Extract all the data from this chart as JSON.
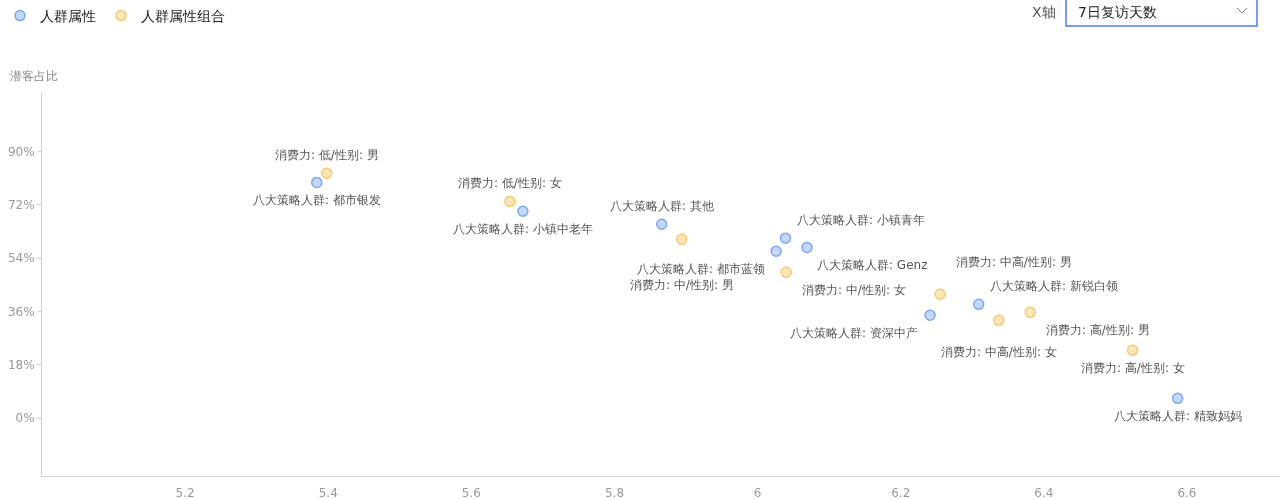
{
  "chart_data": {
    "type": "scatter",
    "ylabel": "潜客占比",
    "annotations": [
      "X轴",
      "7日复访天数"
    ],
    "legend": "top left",
    "marker": "circle",
    "grid": false,
    "xlim": [
      5.0,
      6.73
    ],
    "xticks": [
      5.2,
      5.4,
      5.6,
      5.8,
      6,
      6.2,
      6.4,
      6.6
    ],
    "ylim": [
      -19.5,
      110
    ],
    "yticks": [
      {
        "value": 0,
        "label": "0%"
      },
      {
        "value": 18,
        "label": "18%"
      },
      {
        "value": 36,
        "label": "36%"
      },
      {
        "value": 54,
        "label": "54%"
      },
      {
        "value": 72,
        "label": "72%"
      },
      {
        "value": 90,
        "label": "90%"
      }
    ],
    "series": [
      {
        "name": "人群属性",
        "color": "#7ea6f5",
        "x": [
          5.384,
          5.672,
          5.866,
          6.026,
          6.039,
          6.069,
          6.309,
          6.241,
          6.587
        ],
        "values": [
          79.5,
          69.8,
          65.4,
          56.3,
          60.7,
          57.6,
          38.4,
          34.7,
          6.7
        ],
        "value_labels": [
          "八大策略人群: 都市银发",
          "八大策略人群: 小镇中老年",
          "八大策略人群: 其他",
          "八大策略人群: 都市蓝领",
          "八大策略人群: 小镇青年",
          "八大策略人群: Genz",
          "八大策略人群: 新锐白领",
          "八大策略人群: 资深中产",
          "八大策略人群: 精致妈妈"
        ]
      },
      {
        "name": "人群属性组合",
        "color": "#f9c86a",
        "x": [
          5.398,
          5.654,
          5.894,
          6.04,
          6.255,
          6.381,
          6.337,
          6.524
        ],
        "values": [
          82.6,
          73.1,
          60.3,
          49.2,
          41.8,
          35.7,
          33.0,
          22.9
        ],
        "value_labels": [
          "消费力: 低/性别: 男",
          "消费力: 低/性别: 女",
          "消费力: 中/性别: 男",
          "消费力: 中/性别: 女",
          "消费力: 中高/性别: 男",
          "消费力: 高/性别: 男",
          "消费力: 中高/性别: 女",
          "消费力: 高/性别: 女"
        ]
      }
    ]
  }
}
